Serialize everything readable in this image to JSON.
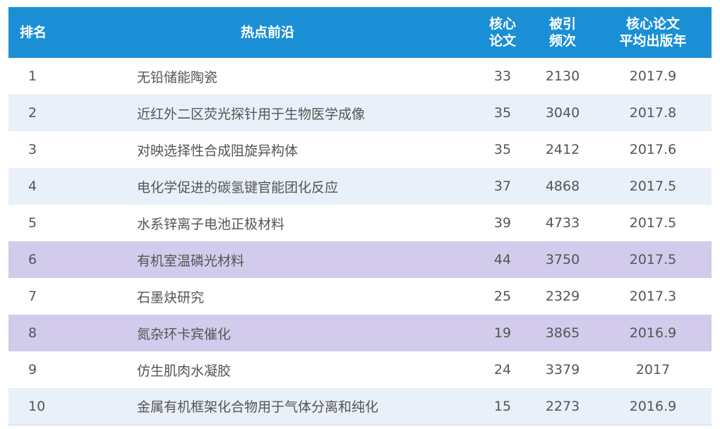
{
  "header": {
    "rank": "排名",
    "topic": "热点前沿",
    "core_line1": "核心",
    "core_line2": "论文",
    "cite_line1": "被引",
    "cite_line2": "频次",
    "year_line1": "核心论文",
    "year_line2": "平均出版年"
  },
  "rows": [
    {
      "rank": "1",
      "topic": "无铅储能陶瓷",
      "core": "33",
      "cites": "2130",
      "year": "2017.9"
    },
    {
      "rank": "2",
      "topic": "近红外二区荧光探针用于生物医学成像",
      "core": "35",
      "cites": "3040",
      "year": "2017.8"
    },
    {
      "rank": "3",
      "topic": "对映选择性合成阻旋异构体",
      "core": "35",
      "cites": "2412",
      "year": "2017.6"
    },
    {
      "rank": "4",
      "topic": "电化学促进的碳氢键官能团化反应",
      "core": "37",
      "cites": "4868",
      "year": "2017.5"
    },
    {
      "rank": "5",
      "topic": "水系锌离子电池正极材料",
      "core": "39",
      "cites": "4733",
      "year": "2017.5"
    },
    {
      "rank": "6",
      "topic": "有机室温磷光材料",
      "core": "44",
      "cites": "3750",
      "year": "2017.5"
    },
    {
      "rank": "7",
      "topic": "石墨炔研究",
      "core": "25",
      "cites": "2329",
      "year": "2017.3"
    },
    {
      "rank": "8",
      "topic": "氮杂环卡宾催化",
      "core": "19",
      "cites": "3865",
      "year": "2016.9"
    },
    {
      "rank": "9",
      "topic": "仿生肌肉水凝胶",
      "core": "24",
      "cites": "3379",
      "year": "2017"
    },
    {
      "rank": "10",
      "topic": "金属有机框架化合物用于气体分离和纯化",
      "core": "15",
      "cites": "2273",
      "year": "2016.9"
    }
  ],
  "colors": {
    "header_bg": "#1a8fd6",
    "stripe": "#e9f0f9",
    "highlight": "#d2cbec"
  }
}
